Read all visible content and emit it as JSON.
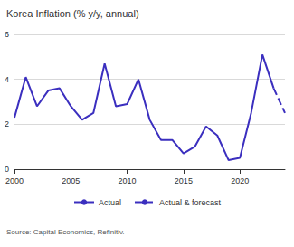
{
  "chart_data": {
    "type": "line",
    "title": "Korea Inflation (% y/y, annual)",
    "source": "Source: Capital Economics, Refinitiv.",
    "x": [
      2000,
      2001,
      2002,
      2003,
      2004,
      2005,
      2006,
      2007,
      2008,
      2009,
      2010,
      2011,
      2012,
      2013,
      2014,
      2015,
      2016,
      2017,
      2018,
      2019,
      2020,
      2021,
      2022,
      2023,
      2024
    ],
    "series": [
      {
        "name": "Actual",
        "color": "#3b2fbf",
        "line_style": "solid",
        "values": [
          2.3,
          4.1,
          2.8,
          3.5,
          3.6,
          2.8,
          2.2,
          2.5,
          4.7,
          2.8,
          2.9,
          4.0,
          2.2,
          1.3,
          1.3,
          0.7,
          1.0,
          1.9,
          1.5,
          0.4,
          0.5,
          2.5,
          5.1,
          3.6,
          null
        ]
      },
      {
        "name": "Actual & forecast",
        "color": "#3b2fbf",
        "line_style": "dashed",
        "values": [
          null,
          null,
          null,
          null,
          null,
          null,
          null,
          null,
          null,
          null,
          null,
          null,
          null,
          null,
          null,
          null,
          null,
          null,
          null,
          null,
          null,
          null,
          null,
          3.6,
          2.5
        ]
      }
    ],
    "xlim": [
      2000,
      2024
    ],
    "xticks": [
      2000,
      2005,
      2010,
      2015,
      2020
    ],
    "ylim": [
      0,
      6
    ],
    "yticks": [
      0,
      2,
      4,
      6
    ],
    "grid": true,
    "legend": "bottom"
  }
}
